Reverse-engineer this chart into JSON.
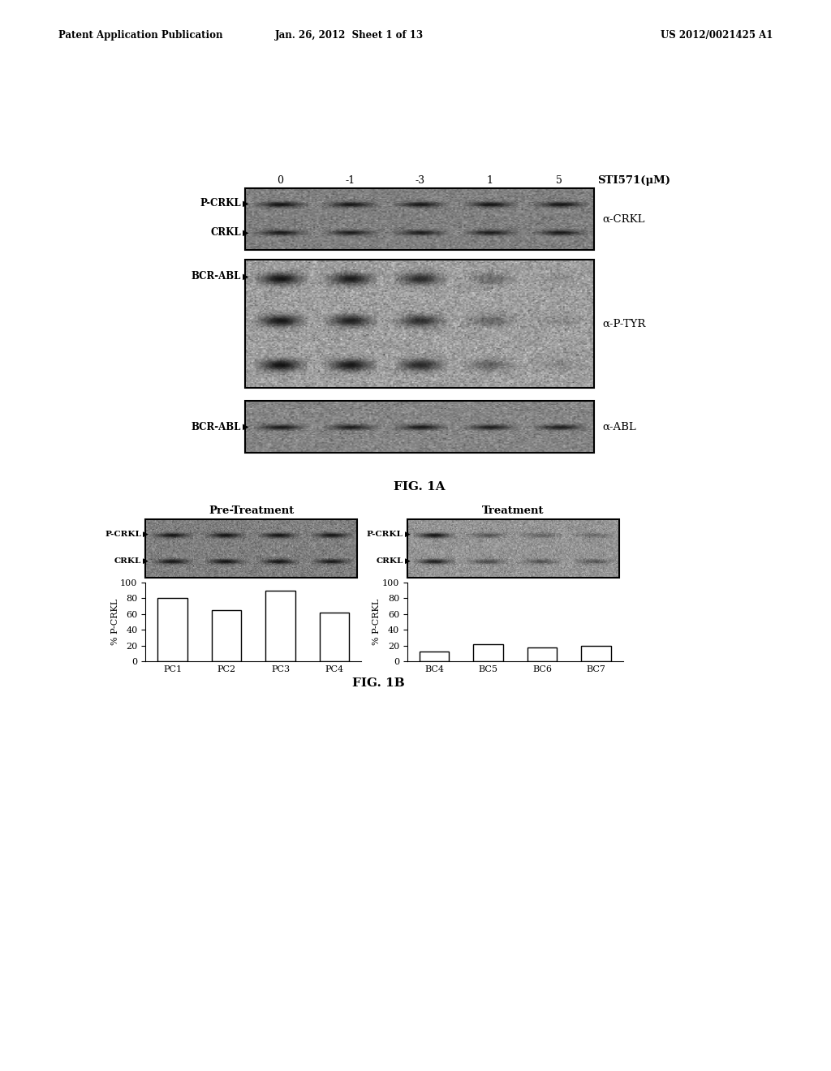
{
  "header_left": "Patent Application Publication",
  "header_center": "Jan. 26, 2012  Sheet 1 of 13",
  "header_right": "US 2012/0021425 A1",
  "fig1a_label": "FIG. 1A",
  "fig1b_label": "FIG. 1B",
  "sti571_concentrations": [
    "0",
    "-1",
    "-3",
    "1",
    "5"
  ],
  "sti571_label": "STI571(μM)",
  "blot1_label_right": "α-CRKL",
  "blot2_label_right": "α-P-TYR",
  "blot3_label_right": "α-ABL",
  "blot1_left_labels": [
    "P-CRKL",
    "CRKL"
  ],
  "blot2_left_labels": [
    "BCR-ABL"
  ],
  "blot3_left_labels": [
    "BCR-ABL"
  ],
  "pretreatment_title": "Pre-Treatment",
  "treatment_title": "Treatment",
  "blot_left_labels_1b_left": [
    "P-CRKL",
    "CRKL"
  ],
  "blot_left_labels_1b_right": [
    "P-CRKL",
    "CRKL"
  ],
  "bar_pc_categories": [
    "PC1",
    "PC2",
    "PC3",
    "PC4"
  ],
  "bar_pc_values": [
    80,
    65,
    90,
    62
  ],
  "bar_bc_categories": [
    "BC4",
    "BC5",
    "BC6",
    "BC7"
  ],
  "bar_bc_values": [
    12,
    22,
    18,
    20
  ],
  "ylabel_bars": "% P-CRKL",
  "ylim_bars": [
    0,
    100
  ],
  "yticks_bars": [
    0,
    20,
    40,
    60,
    80,
    100
  ],
  "background_color": "#ffffff"
}
